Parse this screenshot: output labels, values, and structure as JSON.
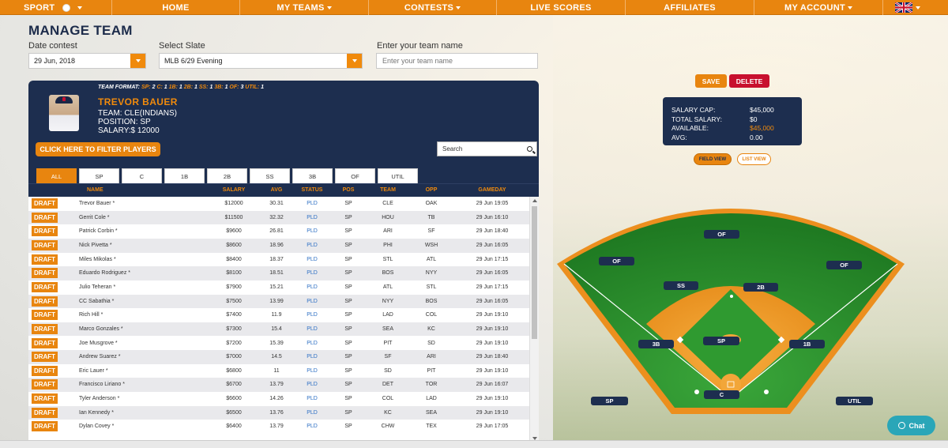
{
  "nav": {
    "sport": "SPORT",
    "home": "HOME",
    "my_teams": "MY TEAMS",
    "contests": "CONTESTS",
    "live_scores": "LIVE SCORES",
    "affiliates": "AFFILIATES",
    "my_account": "MY ACCOUNT"
  },
  "page_title": "MANAGE TEAM",
  "form": {
    "date_label": "Date contest",
    "date_value": "29 Jun, 2018",
    "slate_label": "Select Slate",
    "slate_value": "MLB 6/29 Evening",
    "team_name_label": "Enter your team name",
    "team_name_placeholder": "Enter your team name"
  },
  "team_format": {
    "label": "TEAM FORMAT:",
    "items": [
      {
        "pos": "SP:",
        "n": "2"
      },
      {
        "pos": "C:",
        "n": "1"
      },
      {
        "pos": "1B:",
        "n": "1"
      },
      {
        "pos": "2B:",
        "n": "1"
      },
      {
        "pos": "SS:",
        "n": "1"
      },
      {
        "pos": "3B:",
        "n": "1"
      },
      {
        "pos": "OF:",
        "n": "3"
      },
      {
        "pos": "UTIL:",
        "n": "1"
      }
    ]
  },
  "player": {
    "name": "TREVOR BAUER",
    "team": "TEAM: CLE(INDIANS)",
    "position": "POSITION: SP",
    "salary": "SALARY:$ 12000"
  },
  "filter_button": "CLICK HERE TO FILTER PLAYERS",
  "search_placeholder": "Search",
  "tabs": [
    "ALL",
    "SP",
    "C",
    "1B",
    "2B",
    "SS",
    "3B",
    "OF",
    "UTIL"
  ],
  "columns": [
    "NAME",
    "SALARY",
    "AVG",
    "STATUS",
    "POS",
    "TEAM",
    "OPP",
    "GAMEDAY"
  ],
  "draft_label": "DRAFT",
  "rows": [
    {
      "name": "Trevor Bauer *",
      "salary": "$12000",
      "avg": "30.31",
      "status": "PLD",
      "pos": "SP",
      "team": "CLE",
      "opp": "OAK",
      "gameday": "29 Jun 19:05"
    },
    {
      "name": "Gerrit Cole *",
      "salary": "$11500",
      "avg": "32.32",
      "status": "PLD",
      "pos": "SP",
      "team": "HOU",
      "opp": "TB",
      "gameday": "29 Jun 16:10"
    },
    {
      "name": "Patrick Corbin *",
      "salary": "$9600",
      "avg": "26.81",
      "status": "PLD",
      "pos": "SP",
      "team": "ARI",
      "opp": "SF",
      "gameday": "29 Jun 18:40"
    },
    {
      "name": "Nick Pivetta *",
      "salary": "$8600",
      "avg": "18.96",
      "status": "PLD",
      "pos": "SP",
      "team": "PHI",
      "opp": "WSH",
      "gameday": "29 Jun 16:05"
    },
    {
      "name": "Miles Mikolas *",
      "salary": "$8400",
      "avg": "18.37",
      "status": "PLD",
      "pos": "SP",
      "team": "STL",
      "opp": "ATL",
      "gameday": "29 Jun 17:15"
    },
    {
      "name": "Eduardo Rodriguez *",
      "salary": "$8100",
      "avg": "18.51",
      "status": "PLD",
      "pos": "SP",
      "team": "BOS",
      "opp": "NYY",
      "gameday": "29 Jun 16:05"
    },
    {
      "name": "Julio Teheran *",
      "salary": "$7900",
      "avg": "15.21",
      "status": "PLD",
      "pos": "SP",
      "team": "ATL",
      "opp": "STL",
      "gameday": "29 Jun 17:15"
    },
    {
      "name": "CC Sabathia *",
      "salary": "$7500",
      "avg": "13.99",
      "status": "PLD",
      "pos": "SP",
      "team": "NYY",
      "opp": "BOS",
      "gameday": "29 Jun 16:05"
    },
    {
      "name": "Rich Hill *",
      "salary": "$7400",
      "avg": "11.9",
      "status": "PLD",
      "pos": "SP",
      "team": "LAD",
      "opp": "COL",
      "gameday": "29 Jun 19:10"
    },
    {
      "name": "Marco Gonzales *",
      "salary": "$7300",
      "avg": "15.4",
      "status": "PLD",
      "pos": "SP",
      "team": "SEA",
      "opp": "KC",
      "gameday": "29 Jun 19:10"
    },
    {
      "name": "Joe Musgrove *",
      "salary": "$7200",
      "avg": "15.39",
      "status": "PLD",
      "pos": "SP",
      "team": "PIT",
      "opp": "SD",
      "gameday": "29 Jun 19:10"
    },
    {
      "name": "Andrew Suarez *",
      "salary": "$7000",
      "avg": "14.5",
      "status": "PLD",
      "pos": "SP",
      "team": "SF",
      "opp": "ARI",
      "gameday": "29 Jun 18:40"
    },
    {
      "name": "Eric Lauer *",
      "salary": "$6800",
      "avg": "11",
      "status": "PLD",
      "pos": "SP",
      "team": "SD",
      "opp": "PIT",
      "gameday": "29 Jun 19:10"
    },
    {
      "name": "Francisco Liriano *",
      "salary": "$6700",
      "avg": "13.79",
      "status": "PLD",
      "pos": "SP",
      "team": "DET",
      "opp": "TOR",
      "gameday": "29 Jun 16:07"
    },
    {
      "name": "Tyler Anderson *",
      "salary": "$6600",
      "avg": "14.26",
      "status": "PLD",
      "pos": "SP",
      "team": "COL",
      "opp": "LAD",
      "gameday": "29 Jun 19:10"
    },
    {
      "name": "Ian Kennedy *",
      "salary": "$6500",
      "avg": "13.76",
      "status": "PLD",
      "pos": "SP",
      "team": "KC",
      "opp": "SEA",
      "gameday": "29 Jun 19:10"
    },
    {
      "name": "Dylan Covey *",
      "salary": "$6400",
      "avg": "13.79",
      "status": "PLD",
      "pos": "SP",
      "team": "CHW",
      "opp": "TEX",
      "gameday": "29 Jun 17:05"
    }
  ],
  "actions": {
    "save": "SAVE",
    "delete": "DELETE"
  },
  "salary_box": {
    "cap_label": "SALARY CAP:",
    "cap_value": "$45,000",
    "total_label": "TOTAL SALARY:",
    "total_value": "$0",
    "available_label": "AVAILABLE:",
    "available_value": "$45,000",
    "avg_label": "AVG:",
    "avg_value": "0.00"
  },
  "view_toggle": {
    "field": "FIELD VIEW",
    "list": "LIST VIEW"
  },
  "field_positions": {
    "of_center": "OF",
    "of_left": "OF",
    "of_right": "OF",
    "ss": "SS",
    "second": "2B",
    "pitcher": "SP",
    "third": "3B",
    "first": "1B",
    "catcher": "C",
    "sp_bench": "SP",
    "util": "UTIL"
  },
  "chat": "Chat",
  "colors": {
    "accent": "#e8850f",
    "navy": "#1d2e4f",
    "delete": "#c8102e",
    "chat": "#2aa6b8",
    "link": "#2d6fc4"
  },
  "icons": [
    "baseball-icon",
    "uk-flag-icon",
    "search-icon",
    "chat-bubble-icon",
    "dropdown-caret-icon"
  ]
}
